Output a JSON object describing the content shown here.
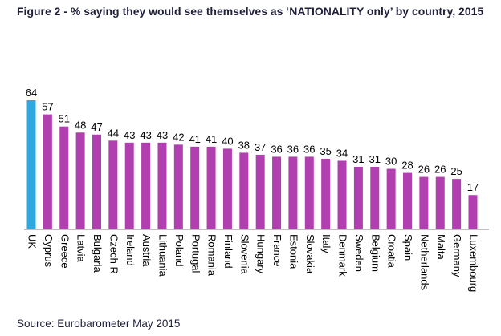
{
  "title": "Figure 2 - % saying they would see themselves as ‘NATIONALITY only’ by country, 2015",
  "source": "Source: Eurobarometer May 2015",
  "colors": {
    "highlight": "#2ea8e0",
    "default": "#b13fb0",
    "axis": "#7f7f7f"
  },
  "chart_data": {
    "type": "bar",
    "title": "Figure 2 - % saying they would see themselves as ‘NATIONALITY only’ by country, 2015",
    "xlabel": "",
    "ylabel": "",
    "ylim": [
      0,
      64
    ],
    "grid": false,
    "categories": [
      "UK",
      "Cyprus",
      "Greece",
      "Latvia",
      "Bulgaria",
      "Czech R",
      "Ireland",
      "Austria",
      "Lithuania",
      "Poland",
      "Portugal",
      "Romania",
      "Finland",
      "Slovenia",
      "Hungary",
      "France",
      "Estonia",
      "Slovakia",
      "Italy",
      "Denmark",
      "Sweden",
      "Belgium",
      "Croatia",
      "Spain",
      "Netherlands",
      "Malta",
      "Germany",
      "Luxembourg"
    ],
    "values": [
      64,
      57,
      51,
      48,
      47,
      44,
      43,
      43,
      43,
      42,
      41,
      41,
      40,
      38,
      37,
      36,
      36,
      36,
      35,
      34,
      31,
      31,
      30,
      28,
      26,
      26,
      25,
      17
    ],
    "highlight_category": "UK"
  }
}
